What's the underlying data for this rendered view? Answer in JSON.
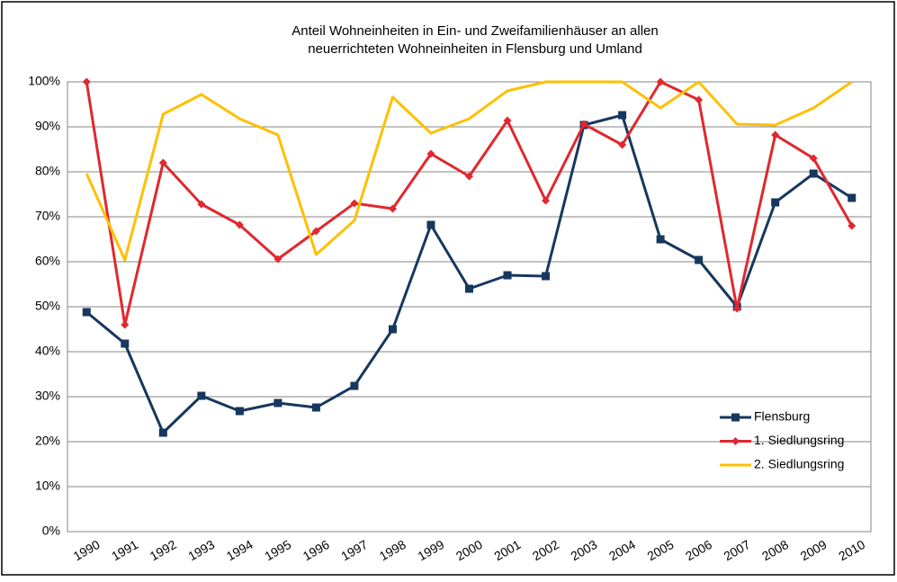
{
  "chart_data": {
    "type": "line",
    "title": [
      "Anteil Wohneinheiten in Ein- und Zweifamilienhäuser an allen",
      "neuerrichteten Wohneinheiten in Flensburg und Umland"
    ],
    "categories": [
      "1990",
      "1991",
      "1992",
      "1993",
      "1994",
      "1995",
      "1996",
      "1997",
      "1998",
      "1999",
      "2000",
      "2001",
      "2002",
      "2003",
      "2004",
      "2005",
      "2006",
      "2007",
      "2008",
      "2009",
      "2010"
    ],
    "series": [
      {
        "name": "Flensburg",
        "color": "#17375e",
        "marker": "square",
        "values": [
          48.8,
          41.8,
          22,
          30.2,
          26.8,
          28.6,
          27.6,
          32.4,
          45,
          68.2,
          54,
          57,
          56.8,
          90.4,
          92.6,
          65,
          60.4,
          50,
          73.2,
          79.6,
          74.2
        ]
      },
      {
        "name": "1. Siedlungsring",
        "color": "#e0282e",
        "marker": "diamond",
        "values": [
          100,
          46,
          82,
          72.8,
          68.2,
          60.6,
          66.8,
          73,
          71.8,
          84,
          79,
          91.4,
          73.6,
          90.6,
          86,
          100,
          96,
          49.6,
          88.2,
          83,
          68
        ]
      },
      {
        "name": "2. Siedlungsring",
        "color": "#ffc000",
        "marker": "none",
        "values": [
          79.6,
          60.4,
          92.8,
          97.2,
          91.8,
          88.2,
          61.6,
          69.2,
          96.6,
          88.6,
          91.8,
          98,
          100,
          100,
          100,
          94.2,
          100,
          90.6,
          90.4,
          94.2,
          100
        ]
      }
    ],
    "ylim": [
      0,
      100
    ],
    "yticks": [
      {
        "value": 0,
        "label": "0%"
      },
      {
        "value": 10,
        "label": "10%"
      },
      {
        "value": 20,
        "label": "20%"
      },
      {
        "value": 30,
        "label": "30%"
      },
      {
        "value": 40,
        "label": "40%"
      },
      {
        "value": 50,
        "label": "50%"
      },
      {
        "value": 60,
        "label": "60%"
      },
      {
        "value": 70,
        "label": "70%"
      },
      {
        "value": 80,
        "label": "80%"
      },
      {
        "value": 90,
        "label": "90%"
      },
      {
        "value": 100,
        "label": "100%"
      }
    ],
    "grid": true,
    "legend": "lower right"
  }
}
